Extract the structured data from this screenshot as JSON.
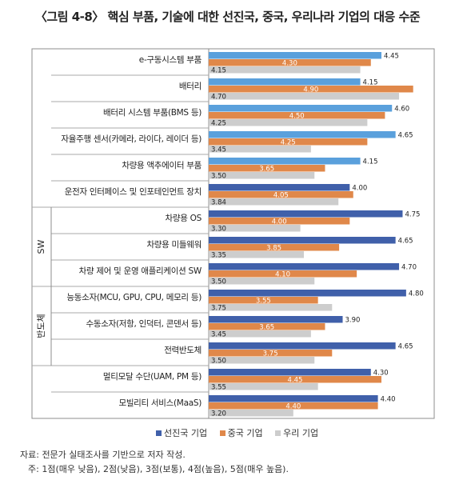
{
  "title": "〈그림 4-8〉 핵심 부품, 기술에 대한 선진국, 중국, 우리나라 기업의 대응 수준",
  "legend": [
    "선진국 기업",
    "중국 기업",
    "우리 기업"
  ],
  "notes": {
    "source": "자료: 전문가 실태조사를 기반으로 저자 작성.",
    "note": "주: 1점(매우 낮음), 2점(낮음), 3점(보통), 4점(높음), 5점(매우 높음)."
  },
  "group_labels": [
    "SW",
    "반도체"
  ],
  "chart_data": {
    "type": "bar",
    "orientation": "horizontal",
    "title": "〈그림 4-8〉 핵심 부품, 기술에 대한 선진국, 중국, 우리나라 기업의 대응 수준",
    "xlim": [
      2,
      5
    ],
    "grid": false,
    "legend_position": "bottom",
    "groups": [
      {
        "name": "",
        "categories": [
          "e-구동시스템 부품",
          "배터리",
          "배터리 시스템 부품(BMS 등)",
          "자율주행 센서(카메라, 라이다, 레이더 등)",
          "차량용 액추에이터 부품",
          "운전자 인터페이스 및 인포테인먼트 장치"
        ]
      },
      {
        "name": "SW",
        "categories": [
          "차량용 OS",
          "차량용 미들웨워",
          "차량 제어 및 운영 애플리케이션 SW"
        ]
      },
      {
        "name": "반도체",
        "categories": [
          "능동소자(MCU, GPU, CPU, 메모리 등)",
          "수동소자(저항, 인덕터, 콘덴서 등)",
          "전력반도체"
        ]
      },
      {
        "name": "",
        "categories": [
          "멀티모달 수단(UAM, PM 등)",
          "모빌리티 서비스(MaaS)"
        ]
      }
    ],
    "categories": [
      "e-구동시스템 부품",
      "배터리",
      "배터리 시스템 부품(BMS 등)",
      "자율주행 센서(카메라, 라이다, 레이더 등)",
      "차량용 액추에이터 부품",
      "운전자 인터페이스 및 인포테인먼트 장치",
      "차량용 OS",
      "차량용 미들웨워",
      "차량 제어 및 운영 애플리케이션 SW",
      "능동소자(MCU, GPU, CPU, 메모리 등)",
      "수동소자(저항, 인덕터, 콘덴서 등)",
      "전력반도체",
      "멀티모달 수단(UAM, PM 등)",
      "모빌리티 서비스(MaaS)"
    ],
    "series": [
      {
        "name": "선진국 기업",
        "values": [
          4.45,
          4.15,
          4.6,
          4.65,
          4.15,
          4.0,
          4.75,
          4.65,
          4.7,
          4.8,
          3.9,
          4.65,
          4.3,
          4.4
        ]
      },
      {
        "name": "중국 기업",
        "values": [
          4.3,
          4.9,
          4.5,
          4.25,
          3.65,
          4.05,
          4.0,
          3.85,
          4.1,
          3.55,
          3.65,
          3.75,
          4.45,
          4.4
        ]
      },
      {
        "name": "우리 기업",
        "values": [
          4.15,
          4.7,
          4.25,
          3.45,
          3.5,
          3.84,
          3.3,
          3.35,
          3.5,
          3.75,
          3.45,
          3.5,
          3.55,
          3.2
        ]
      }
    ],
    "value_labels": [
      [
        "4.45",
        "4.15",
        "4.60",
        "4.65",
        "4.15",
        "4.00",
        "4.75",
        "4.65",
        "4.70",
        "4.80",
        "3.90",
        "4.65",
        "4.30",
        "4.40"
      ],
      [
        "4.30",
        "4.90",
        "4.50",
        "4.25",
        "3.65",
        "4.05",
        "4.00",
        "3.85",
        "4.10",
        "3.55",
        "3.65",
        "3.75",
        "4.45",
        "4.40"
      ],
      [
        "4.15",
        "4.70",
        "4.25",
        "3.45",
        "3.50",
        "3.84",
        "3.30",
        "3.35",
        "3.50",
        "3.75",
        "3.45",
        "3.50",
        "3.55",
        "3.20"
      ]
    ],
    "colors": {
      "light_blue": "#5aa0dc",
      "dark_blue": "#4060aa",
      "orange": "#e0884a",
      "gray": "#cdcdcd",
      "frame": "#8c8c8c"
    },
    "series_color_keys": [
      [
        "light_blue",
        "light_blue",
        "light_blue",
        "light_blue",
        "light_blue",
        "dark_blue",
        "dark_blue",
        "dark_blue",
        "dark_blue",
        "dark_blue",
        "dark_blue",
        "dark_blue",
        "dark_blue",
        "dark_blue"
      ],
      [
        "orange",
        "orange",
        "orange",
        "orange",
        "orange",
        "orange",
        "orange",
        "orange",
        "orange",
        "orange",
        "orange",
        "orange",
        "orange",
        "orange"
      ],
      [
        "gray",
        "gray",
        "gray",
        "gray",
        "gray",
        "gray",
        "gray",
        "gray",
        "gray",
        "gray",
        "gray",
        "gray",
        "gray",
        "gray"
      ]
    ],
    "legend_color_keys": [
      "dark_blue",
      "orange",
      "gray"
    ]
  }
}
